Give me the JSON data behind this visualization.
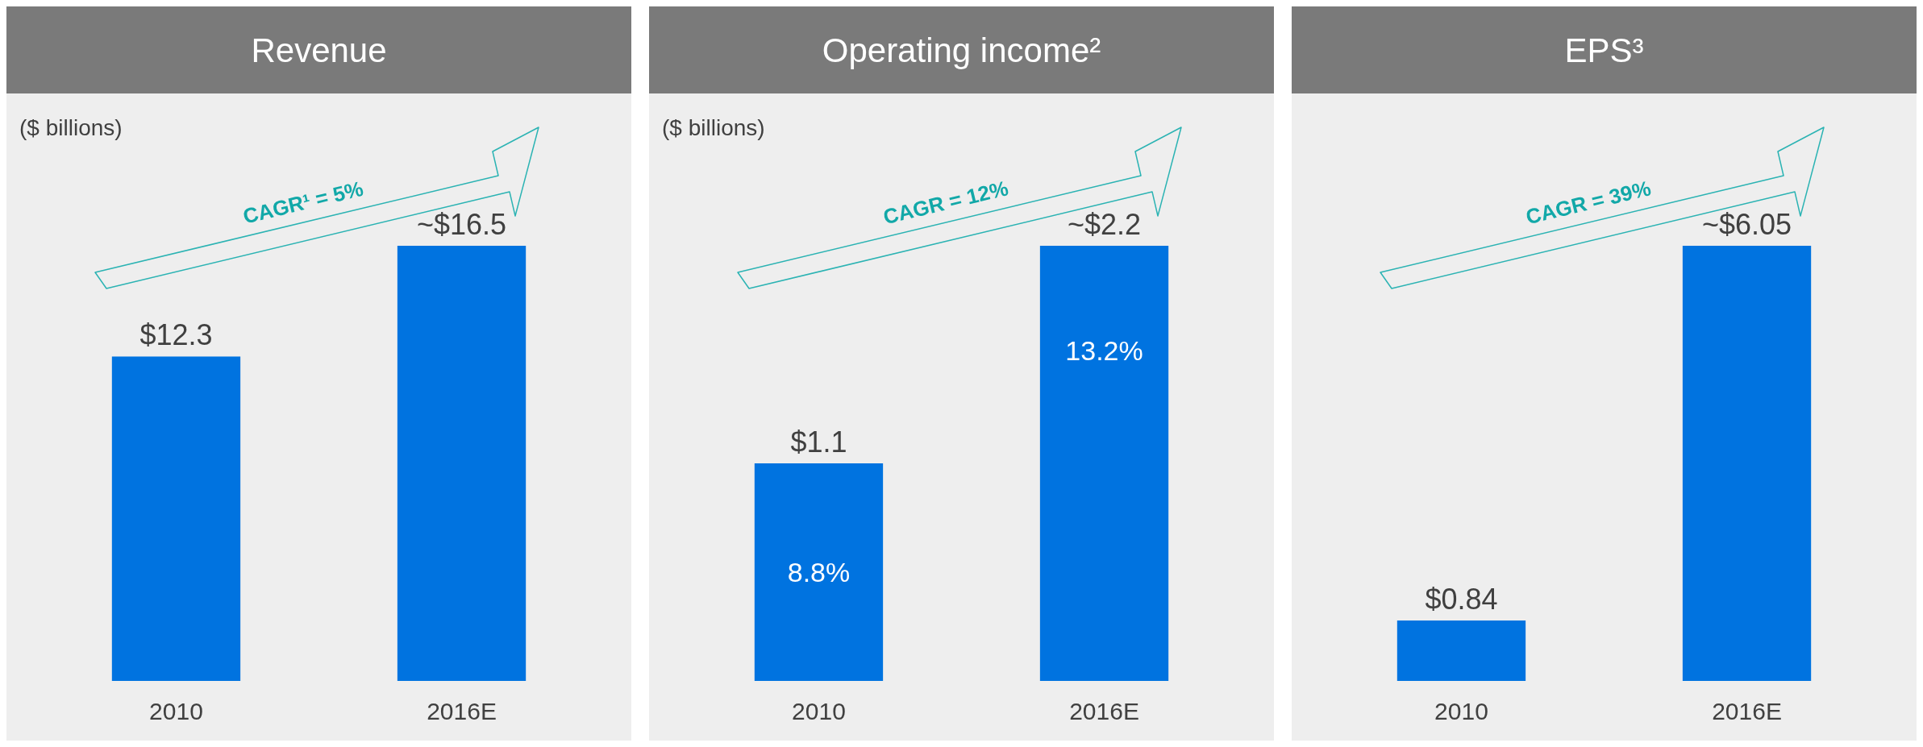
{
  "chart_data": [
    {
      "type": "bar",
      "title": "Revenue",
      "ylabel": "($ billions)",
      "categories": [
        "2010",
        "2016E"
      ],
      "values": [
        12.3,
        16.5
      ],
      "color": "#0073e0",
      "value_labels": [
        "$12.3",
        "~$16.5"
      ],
      "annotations": [
        "CAGR¹ = 5%"
      ]
    },
    {
      "type": "bar",
      "title": "Operating income²",
      "ylabel": "($ billions)",
      "categories": [
        "2010",
        "2016E"
      ],
      "values": [
        1.1,
        2.2
      ],
      "color": "#0073e0",
      "value_labels": [
        "$1.1",
        "~$2.2"
      ],
      "annotations": [
        "CAGR = 12%",
        "8.8%",
        "13.2%"
      ]
    },
    {
      "type": "bar",
      "title": "EPS³",
      "categories": [
        "2010",
        "2016E"
      ],
      "values": [
        0.84,
        6.05
      ],
      "color": "#0073e0",
      "value_labels": [
        "$0.84",
        "~$6.05"
      ],
      "annotations": [
        "CAGR = 39%"
      ]
    }
  ]
}
